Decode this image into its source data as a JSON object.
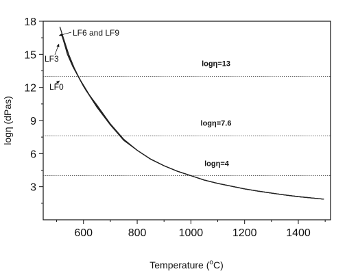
{
  "chart_data": {
    "type": "line",
    "xlabel_prefix": "Temperature (",
    "xlabel_degree": "o",
    "xlabel_suffix": "C)",
    "ylabel": "logη (dPas)",
    "xlim": [
      450,
      1520
    ],
    "ylim": [
      0,
      18
    ],
    "x_ticks": [
      600,
      800,
      1000,
      1200,
      1400
    ],
    "y_ticks": [
      3,
      6,
      9,
      12,
      15,
      18
    ],
    "grid": false,
    "series": [
      {
        "name": "LF0",
        "color": "#222222",
        "points": [
          [
            525,
            16.3
          ],
          [
            540,
            15.0
          ],
          [
            560,
            13.9
          ],
          [
            580,
            13.0
          ],
          [
            600,
            12.1
          ],
          [
            650,
            10.2
          ],
          [
            700,
            8.6
          ],
          [
            750,
            7.2
          ],
          [
            800,
            6.3
          ],
          [
            850,
            5.5
          ],
          [
            900,
            4.9
          ],
          [
            950,
            4.4
          ],
          [
            1000,
            4.0
          ],
          [
            1050,
            3.6
          ],
          [
            1100,
            3.3
          ],
          [
            1150,
            3.05
          ],
          [
            1200,
            2.8
          ],
          [
            1250,
            2.6
          ],
          [
            1300,
            2.42
          ],
          [
            1350,
            2.25
          ],
          [
            1400,
            2.1
          ],
          [
            1450,
            1.98
          ],
          [
            1495,
            1.87
          ]
        ]
      },
      {
        "name": "LF3",
        "color": "#222222",
        "points": [
          [
            518,
            16.8
          ],
          [
            530,
            15.9
          ],
          [
            550,
            14.6
          ],
          [
            570,
            13.5
          ],
          [
            590,
            12.6
          ],
          [
            620,
            11.4
          ],
          [
            650,
            10.3
          ],
          [
            700,
            8.65
          ],
          [
            750,
            7.25
          ],
          [
            800,
            6.3
          ],
          [
            850,
            5.5
          ],
          [
            900,
            4.9
          ],
          [
            950,
            4.4
          ],
          [
            1000,
            4.0
          ],
          [
            1050,
            3.6
          ],
          [
            1100,
            3.3
          ],
          [
            1150,
            3.05
          ],
          [
            1200,
            2.8
          ],
          [
            1250,
            2.6
          ],
          [
            1300,
            2.42
          ],
          [
            1350,
            2.25
          ],
          [
            1400,
            2.1
          ],
          [
            1450,
            1.98
          ],
          [
            1495,
            1.87
          ]
        ]
      },
      {
        "name": "LF6 and LF9",
        "color": "#222222",
        "points": [
          [
            512,
            17.5
          ],
          [
            525,
            16.5
          ],
          [
            545,
            15.0
          ],
          [
            565,
            13.8
          ],
          [
            585,
            12.8
          ],
          [
            610,
            11.7
          ],
          [
            650,
            10.4
          ],
          [
            700,
            8.7
          ],
          [
            750,
            7.3
          ],
          [
            800,
            6.3
          ],
          [
            850,
            5.5
          ],
          [
            900,
            4.9
          ],
          [
            950,
            4.4
          ],
          [
            1000,
            4.0
          ],
          [
            1050,
            3.6
          ],
          [
            1100,
            3.3
          ],
          [
            1150,
            3.05
          ],
          [
            1200,
            2.8
          ],
          [
            1250,
            2.6
          ],
          [
            1300,
            2.42
          ],
          [
            1350,
            2.25
          ],
          [
            1400,
            2.1
          ],
          [
            1450,
            1.98
          ],
          [
            1495,
            1.87
          ]
        ]
      }
    ],
    "reference_lines": [
      {
        "y": 13,
        "label": "logη=13"
      },
      {
        "y": 7.6,
        "label": "logη=7.6"
      },
      {
        "y": 4,
        "label": "logη=4"
      }
    ],
    "annotations": [
      {
        "text": "LF6 and LF9"
      },
      {
        "text": "LF3"
      },
      {
        "text": "LF0"
      }
    ]
  }
}
